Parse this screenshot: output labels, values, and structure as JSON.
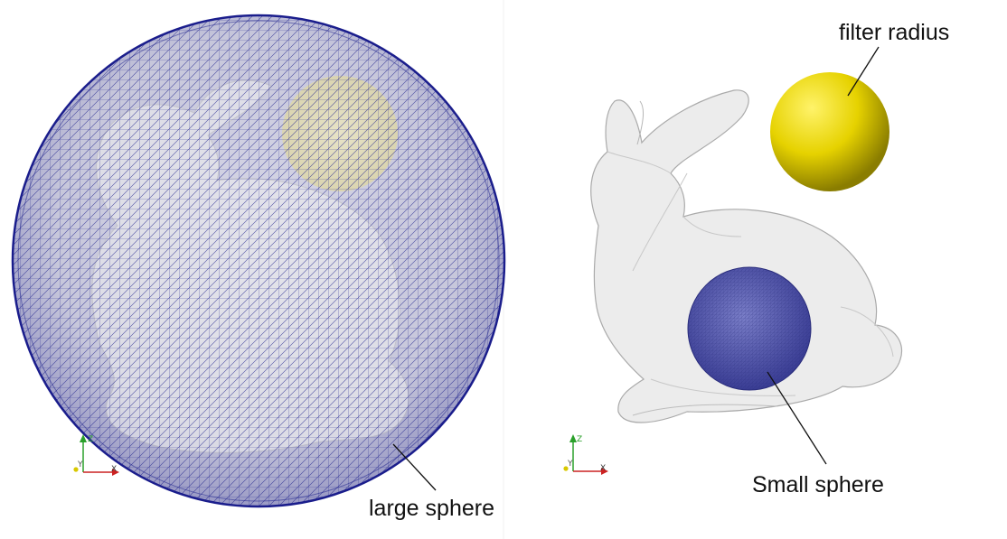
{
  "annotations": {
    "large_sphere": "large sphere",
    "small_sphere": "Small sphere",
    "filter_radius": "filter radius"
  },
  "axes": {
    "z": "Z",
    "y": "Y",
    "x": "X"
  },
  "colors": {
    "mesh_line": "#1a1d8c",
    "small_sphere": "#5b5fb0",
    "filter_sphere": "#e6d200",
    "bunny_fill": "#e9e9e9",
    "bunny_edge": "#9e9e9e",
    "axis_z": "#2aa02a",
    "axis_x": "#cc2222",
    "axis_y": "#d8c800",
    "label": "#111111"
  }
}
